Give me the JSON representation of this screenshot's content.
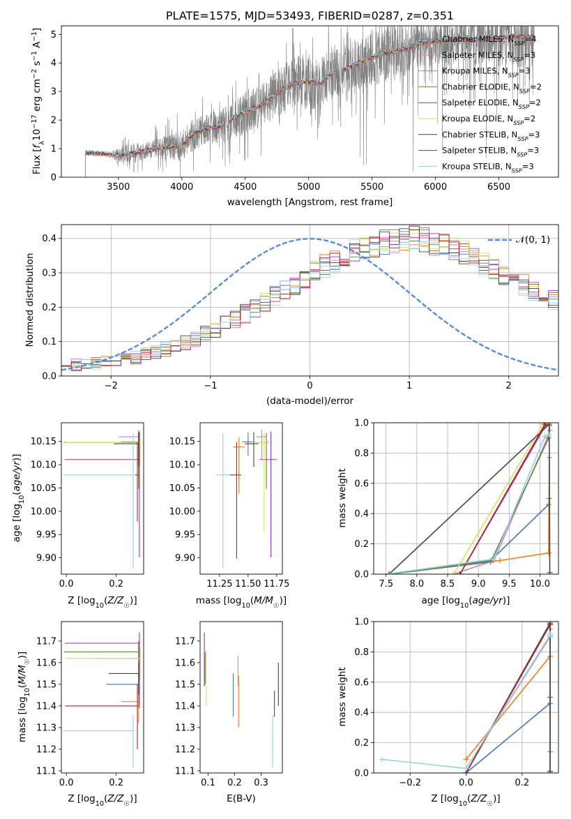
{
  "chart_data": [
    {
      "type": "line",
      "title": "PLATE=1575, MJD=53493, FIBERID=0287, z=0.351",
      "xlabel": "wavelength [Angstrom, rest frame]",
      "ylabel": "Flux [f_λ 10^-17 erg cm^-2 s^-1 A^-1]",
      "xlim": [
        3050,
        6970
      ],
      "ylim": [
        0,
        5.3
      ],
      "x_ticks": [
        "3500",
        "4000",
        "4500",
        "5000",
        "5500",
        "6000",
        "6500"
      ],
      "y_ticks": [
        "0",
        "1",
        "2",
        "3",
        "4",
        "5"
      ],
      "legend_position": "top-right",
      "data_color": "#7f7f7f",
      "data_envelope": {
        "x": [
          3240,
          3290,
          3350,
          3420,
          3500,
          3600,
          3700,
          3800,
          3900,
          4000,
          4100,
          4200,
          4300,
          4400,
          4500,
          4600,
          4700,
          4800,
          4900,
          5000,
          5100,
          5200,
          5300,
          5400,
          5500,
          5600,
          5700,
          5800,
          5900,
          6000,
          6100,
          6200,
          6300,
          6400,
          6500,
          6600,
          6700,
          6780
        ],
        "median": [
          0.85,
          0.85,
          0.83,
          0.8,
          0.78,
          0.82,
          0.9,
          1.0,
          1.05,
          1.1,
          1.55,
          1.7,
          1.75,
          2.05,
          2.3,
          2.45,
          2.75,
          3.1,
          3.3,
          3.35,
          3.3,
          3.7,
          3.8,
          4.0,
          4.2,
          4.35,
          4.4,
          4.55,
          4.7,
          4.75,
          4.8,
          4.85,
          4.8,
          4.9,
          4.85,
          4.95,
          4.9,
          4.9
        ],
        "spread": [
          0.05,
          0.05,
          0.08,
          0.1,
          0.5,
          0.8,
          0.6,
          0.7,
          0.9,
          1.1,
          1.2,
          1.0,
          1.3,
          1.4,
          1.6,
          1.5,
          1.6,
          1.7,
          1.9,
          2.1,
          1.8,
          1.9,
          1.7,
          1.9,
          2.0,
          2.1,
          2.0,
          1.9,
          1.7,
          1.7,
          1.8,
          1.6,
          1.9,
          1.7,
          2.0,
          2.1,
          2.2,
          2.3
        ]
      },
      "series": [
        {
          "name": "Chabrier MILES, N_SSP=4",
          "color": "#4c72b0"
        },
        {
          "name": "Salpeter MILES, N_SSP=3",
          "color": "#e377c2"
        },
        {
          "name": "Kroupa MILES, N_SSP=3",
          "color": "#ee7d22"
        },
        {
          "name": "Chabrier ELODIE, N_SSP=2",
          "color": "#5a8a3a"
        },
        {
          "name": "Salpeter ELODIE, N_SSP=2",
          "color": "#9b30b8"
        },
        {
          "name": "Kroupa ELODIE, N_SSP=2",
          "color": "#d4e15a"
        },
        {
          "name": "Chabrier STELIB, N_SSP=3",
          "color": "#444444"
        },
        {
          "name": "Salpeter STELIB, N_SSP=3",
          "color": "#b22222"
        },
        {
          "name": "Kroupa STELIB, N_SSP=3",
          "color": "#8fd3e3"
        }
      ]
    },
    {
      "type": "bar",
      "xlabel": "(data-model)/error",
      "ylabel": "Normed distribution",
      "xlim": [
        -2.5,
        2.5
      ],
      "ylim": [
        0,
        0.44
      ],
      "x_ticks": [
        "−2",
        "−1",
        "0",
        "1",
        "2"
      ],
      "y_ticks": [
        "0.0",
        "0.1",
        "0.2",
        "0.3",
        "0.4"
      ],
      "grid": true,
      "legend_position": "top-right",
      "curve": {
        "name": "𝒩(0, 1)",
        "color": "#5b8ad6"
      },
      "bin_edges_start": -2.5,
      "bin_width": 0.1,
      "base_counts": [
        0.03,
        0.032,
        0.035,
        0.038,
        0.04,
        0.045,
        0.05,
        0.056,
        0.062,
        0.07,
        0.078,
        0.088,
        0.098,
        0.11,
        0.122,
        0.136,
        0.15,
        0.166,
        0.182,
        0.198,
        0.215,
        0.232,
        0.25,
        0.268,
        0.285,
        0.302,
        0.318,
        0.334,
        0.348,
        0.36,
        0.372,
        0.382,
        0.39,
        0.396,
        0.398,
        0.398,
        0.395,
        0.389,
        0.38,
        0.369,
        0.356,
        0.342,
        0.328,
        0.312,
        0.296,
        0.28,
        0.265,
        0.25,
        0.235,
        0.22
      ]
    },
    {
      "type": "scatter",
      "xlabel": "Z [log10(Z/Z☉)]",
      "ylabel": "age  [log10(age/yr)]",
      "xlim": [
        -0.02,
        0.31
      ],
      "ylim": [
        9.865,
        10.19
      ],
      "x_ticks": [
        "0.0",
        "0.2"
      ],
      "y_ticks": [
        "9.90",
        "9.95",
        "10.00",
        "10.05",
        "10.10",
        "10.15"
      ],
      "points": [
        {
          "x": 0.29,
          "y": 10.149,
          "xerr": [
            0.07,
            0.003
          ],
          "yerr": [
            0.03,
            0.02
          ],
          "c": "#4c72b0"
        },
        {
          "x": 0.29,
          "y": 10.16,
          "xerr": [
            0.08,
            0.003
          ],
          "yerr": [
            0.05,
            0.015
          ],
          "c": "#e377c2"
        },
        {
          "x": 0.29,
          "y": 10.148,
          "xerr": [
            0.05,
            0.003
          ],
          "yerr": [
            0.09,
            0.02
          ],
          "c": "#ee7d22"
        },
        {
          "x": 0.29,
          "y": 10.148,
          "xerr": [
            0.3,
            0.003
          ],
          "yerr": [
            0.1,
            0.02
          ],
          "c": "#5a8a3a"
        },
        {
          "x": 0.293,
          "y": 10.111,
          "xerr": [
            0.3,
            0.003
          ],
          "yerr": [
            0.21,
            0.06
          ],
          "c": "#9b30b8"
        },
        {
          "x": 0.296,
          "y": 10.148,
          "xerr": [
            0.3,
            0.003
          ],
          "yerr": [
            0.05,
            0.02
          ],
          "c": "#d4e15a"
        },
        {
          "x": 0.29,
          "y": 10.145,
          "xerr": [
            0.1,
            0.003
          ],
          "yerr": [
            0.05,
            0.025
          ],
          "c": "#444444"
        },
        {
          "x": 0.285,
          "y": 10.078,
          "xerr": [
            0.01,
            0.003
          ],
          "yerr": [
            0.1,
            0.07
          ],
          "c": "#b22222"
        },
        {
          "x": 0.268,
          "y": 10.078,
          "xerr": [
            0.28,
            0.003
          ],
          "yerr": [
            0.2,
            0.09
          ],
          "c": "#8fd3e3"
        }
      ]
    },
    {
      "type": "scatter",
      "xlabel": "mass [log10(M/M☉)]",
      "xlim": [
        11.08,
        11.8
      ],
      "ylim": [
        9.865,
        10.19
      ],
      "x_ticks": [
        "11.25",
        "11.50",
        "11.75"
      ],
      "y_ticks": [
        "9.90",
        "9.95",
        "10.00",
        "10.05",
        "10.10",
        "10.15"
      ],
      "points": [
        {
          "x": 11.5,
          "y": 10.149,
          "xerr": [
            0.05,
            0.04
          ],
          "yerr": [
            0.03,
            0.02
          ],
          "c": "#4c72b0"
        },
        {
          "x": 11.62,
          "y": 10.16,
          "xerr": [
            0.05,
            0.04
          ],
          "yerr": [
            0.05,
            0.015
          ],
          "c": "#e377c2"
        },
        {
          "x": 11.42,
          "y": 10.138,
          "xerr": [
            0.05,
            0.05
          ],
          "yerr": [
            0.1,
            0.02
          ],
          "c": "#ee7d22"
        },
        {
          "x": 11.66,
          "y": 10.148,
          "xerr": [
            0.1,
            0.02
          ],
          "yerr": [
            0.1,
            0.02
          ],
          "c": "#5a8a3a"
        },
        {
          "x": 11.7,
          "y": 10.111,
          "xerr": [
            0.1,
            0.05
          ],
          "yerr": [
            0.21,
            0.06
          ],
          "c": "#9b30b8"
        },
        {
          "x": 11.64,
          "y": 10.148,
          "xerr": [
            0.08,
            0.03
          ],
          "yerr": [
            0.19,
            0.02
          ],
          "c": "#d4e15a"
        },
        {
          "x": 11.55,
          "y": 10.145,
          "xerr": [
            0.08,
            0.04
          ],
          "yerr": [
            0.05,
            0.025
          ],
          "c": "#444444"
        },
        {
          "x": 11.4,
          "y": 10.078,
          "xerr": [
            0.06,
            0.04
          ],
          "yerr": [
            0.18,
            0.07
          ],
          "c": "#b22222"
        },
        {
          "x": 11.28,
          "y": 10.078,
          "xerr": [
            0.06,
            0.06
          ],
          "yerr": [
            0.2,
            0.09
          ],
          "c": "#8fd3e3"
        }
      ]
    },
    {
      "type": "line",
      "xlabel": "age  [log10(age/yr)]",
      "ylabel": "mass weight",
      "xlim": [
        7.3,
        10.3
      ],
      "ylim": [
        0,
        1
      ],
      "x_ticks": [
        "7.5",
        "8.0",
        "8.5",
        "9.0",
        "9.5",
        "10.0"
      ],
      "y_ticks": [
        "0.0",
        "0.2",
        "0.4",
        "0.6",
        "0.8",
        "1.0"
      ],
      "grid": true,
      "series": [
        {
          "c": "#4c72b0",
          "x": [
            7.55,
            9.2,
            10.14,
            10.15
          ],
          "y": [
            0.0,
            0.09,
            0.46,
            0.5
          ]
        },
        {
          "c": "#e377c2",
          "x": [
            8.6,
            9.25,
            10.12,
            10.16
          ],
          "y": [
            0.0,
            0.09,
            0.9,
            0.95
          ]
        },
        {
          "c": "#ee7d22",
          "x": [
            7.55,
            9.35,
            10.14,
            10.15
          ],
          "y": [
            0.0,
            0.09,
            0.14,
            0.77
          ]
        },
        {
          "c": "#5a8a3a",
          "x": [
            7.55,
            9.2,
            10.14,
            10.15
          ],
          "y": [
            0.0,
            0.08,
            0.9,
            0.98
          ]
        },
        {
          "c": "#9b30b8",
          "x": [
            8.7,
            10.1,
            10.11
          ],
          "y": [
            0.0,
            0.99,
            1.0
          ]
        },
        {
          "c": "#d4e15a",
          "x": [
            8.6,
            10.05,
            10.15
          ],
          "y": [
            0.0,
            0.99,
            1.0
          ]
        },
        {
          "c": "#444444",
          "x": [
            7.55,
            10.15,
            10.16
          ],
          "y": [
            0.0,
            0.99,
            0.01
          ]
        },
        {
          "c": "#b22222",
          "x": [
            8.7,
            10.08,
            10.08
          ],
          "y": [
            0.0,
            0.99,
            1.0
          ]
        },
        {
          "c": "#8fd3e3",
          "x": [
            7.5,
            9.25,
            10.08,
            10.15
          ],
          "y": [
            0.0,
            0.1,
            0.91,
            0.92
          ]
        }
      ]
    },
    {
      "type": "scatter",
      "xlabel": "Z [log10(Z/Z☉)]",
      "ylabel": "mass [log10(M/M☉)]",
      "xlim": [
        -0.02,
        0.31
      ],
      "ylim": [
        11.09,
        11.79
      ],
      "x_ticks": [
        "0.0",
        "0.2"
      ],
      "y_ticks": [
        "11.1",
        "11.2",
        "11.3",
        "11.4",
        "11.5",
        "11.6",
        "11.7"
      ],
      "points": [
        {
          "x": 0.29,
          "y": 11.5,
          "xerr": [
            0.13,
            0.003
          ],
          "yerr": [
            0.1,
            0.05
          ],
          "c": "#4c72b0"
        },
        {
          "x": 0.29,
          "y": 11.62,
          "xerr": [
            0.18,
            0.003
          ],
          "yerr": [
            0.05,
            0.07
          ],
          "c": "#e377c2"
        },
        {
          "x": 0.29,
          "y": 11.42,
          "xerr": [
            0.07,
            0.003
          ],
          "yerr": [
            0.1,
            0.05
          ],
          "c": "#ee7d22"
        },
        {
          "x": 0.29,
          "y": 11.65,
          "xerr": [
            0.3,
            0.003
          ],
          "yerr": [
            0.05,
            0.05
          ],
          "c": "#5a8a3a"
        },
        {
          "x": 0.293,
          "y": 11.69,
          "xerr": [
            0.3,
            0.003
          ],
          "yerr": [
            0.3,
            0.05
          ],
          "c": "#9b30b8"
        },
        {
          "x": 0.296,
          "y": 11.62,
          "xerr": [
            0.3,
            0.003
          ],
          "yerr": [
            0.1,
            0.05
          ],
          "c": "#d4e15a"
        },
        {
          "x": 0.29,
          "y": 11.55,
          "xerr": [
            0.12,
            0.003
          ],
          "yerr": [
            0.1,
            0.05
          ],
          "c": "#444444"
        },
        {
          "x": 0.285,
          "y": 11.4,
          "xerr": [
            0.29,
            0.003
          ],
          "yerr": [
            0.2,
            0.1
          ],
          "c": "#b22222"
        },
        {
          "x": 0.268,
          "y": 11.285,
          "xerr": [
            0.28,
            0.003
          ],
          "yerr": [
            0.17,
            0.07
          ],
          "c": "#8fd3e3"
        }
      ]
    },
    {
      "type": "scatter",
      "xlabel": "E(B-V)",
      "xlim": [
        0.07,
        0.38
      ],
      "ylim": [
        11.09,
        11.79
      ],
      "x_ticks": [
        "0.1",
        "0.2",
        "0.3"
      ],
      "y_ticks": [
        "11.1",
        "11.2",
        "11.3",
        "11.4",
        "11.5",
        "11.6",
        "11.7"
      ],
      "points": [
        {
          "x": 0.195,
          "y": 11.45,
          "yerr": [
            0.1,
            0.1
          ],
          "c": "#4c72b0"
        },
        {
          "x": 0.213,
          "y": 11.54,
          "yerr": [
            0.05,
            0.09
          ],
          "c": "#e377c2"
        },
        {
          "x": 0.215,
          "y": 11.42,
          "yerr": [
            0.12,
            0.12
          ],
          "c": "#ee7d22"
        },
        {
          "x": 0.089,
          "y": 11.6,
          "yerr": [
            0.1,
            0.05
          ],
          "c": "#5a8a3a"
        },
        {
          "x": 0.086,
          "y": 11.62,
          "yerr": [
            0.13,
            0.12
          ],
          "c": "#9b30b8"
        },
        {
          "x": 0.093,
          "y": 11.53,
          "yerr": [
            0.13,
            0.13
          ],
          "c": "#d4e15a"
        },
        {
          "x": 0.365,
          "y": 11.5,
          "yerr": [
            0.1,
            0.1
          ],
          "c": "#444444"
        },
        {
          "x": 0.35,
          "y": 11.42,
          "yerr": [
            0.07,
            0.05
          ],
          "c": "#b22222"
        },
        {
          "x": 0.343,
          "y": 11.285,
          "yerr": [
            0.17,
            0.07
          ],
          "c": "#8fd3e3"
        }
      ]
    },
    {
      "type": "line",
      "xlabel": "Z [log10(Z/Z☉)]",
      "ylabel": "mass weight",
      "xlim": [
        -0.33,
        0.33
      ],
      "ylim": [
        0,
        1
      ],
      "x_ticks": [
        "−0.2",
        "0.0",
        "0.2"
      ],
      "y_ticks": [
        "0.0",
        "0.2",
        "0.4",
        "0.6",
        "0.8",
        "1.0"
      ],
      "grid": true,
      "series": [
        {
          "c": "#4c72b0",
          "x": [
            0.0,
            0.3,
            0.3
          ],
          "y": [
            0.0,
            0.46,
            0.5
          ]
        },
        {
          "c": "#e377c2",
          "x": [
            0.0,
            0.3,
            0.3
          ],
          "y": [
            0.03,
            0.9,
            0.95
          ]
        },
        {
          "c": "#ee7d22",
          "x": [
            0.0,
            0.3,
            0.3,
            0.3
          ],
          "y": [
            0.09,
            0.77,
            0.14,
            0.98
          ]
        },
        {
          "c": "#5a8a3a",
          "x": [
            0.0,
            0.3,
            0.3
          ],
          "y": [
            0.0,
            0.98,
            0.01
          ]
        },
        {
          "c": "#9b30b8",
          "x": [
            0.0,
            0.3
          ],
          "y": [
            0.0,
            0.99
          ]
        },
        {
          "c": "#d4e15a",
          "x": [
            0.0,
            0.3
          ],
          "y": [
            0.0,
            0.99
          ]
        },
        {
          "c": "#444444",
          "x": [
            0.0,
            0.3,
            0.3
          ],
          "y": [
            0.0,
            0.99,
            0.01
          ]
        },
        {
          "c": "#b22222",
          "x": [
            0.0,
            0.3
          ],
          "y": [
            0.0,
            0.98
          ]
        },
        {
          "c": "#8fd3e3",
          "x": [
            -0.3,
            0.0,
            0.3,
            0.3
          ],
          "y": [
            0.09,
            0.03,
            0.91,
            0.92
          ]
        }
      ]
    }
  ]
}
